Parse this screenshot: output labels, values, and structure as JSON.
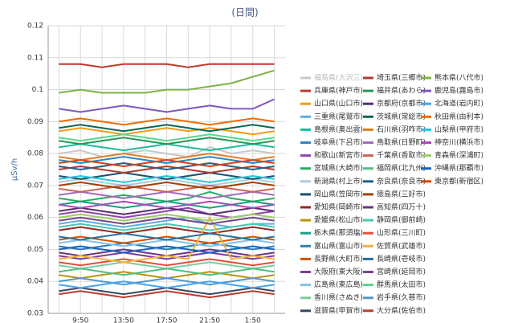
{
  "chart_data": {
    "type": "line",
    "title": "(日間)",
    "y_label": "μSv/h",
    "categories": [
      null,
      "9:50",
      null,
      "13:50",
      null,
      "17:50",
      null,
      "21:50",
      null,
      "1:50",
      null
    ],
    "ylim": [
      0.03,
      0.12
    ],
    "yticks": [
      0.03,
      0.04,
      0.05,
      0.06,
      0.07,
      0.08,
      0.09,
      0.1,
      0.11,
      0.12
    ],
    "grid": true,
    "series": [
      {
        "name": "福島県(大沢三)",
        "color": "#c8c8c8",
        "values": [
          0.08,
          0.081,
          0.079,
          0.08,
          0.081,
          0.08,
          0.079,
          0.082,
          0.08,
          0.081,
          0.08
        ]
      },
      {
        "name": "兵庫県(神戸市)",
        "color": "#c0392b",
        "values": [
          0.108,
          0.108,
          0.107,
          0.108,
          0.108,
          0.108,
          0.107,
          0.108,
          0.108,
          0.108,
          0.108
        ]
      },
      {
        "name": "山口県(山口市)",
        "color": "#f39c12",
        "values": [
          0.087,
          0.088,
          0.087,
          0.086,
          0.087,
          0.088,
          0.087,
          0.088,
          0.087,
          0.086,
          0.087
        ]
      },
      {
        "name": "三重県(尾鷲市)",
        "color": "#5dade2",
        "values": [
          0.058,
          0.059,
          0.058,
          0.057,
          0.058,
          0.059,
          0.06,
          0.058,
          0.057,
          0.058,
          0.058
        ]
      },
      {
        "name": "島根県(奥出雲)",
        "color": "#1abc9c",
        "values": [
          0.082,
          0.083,
          0.082,
          0.081,
          0.082,
          0.083,
          0.082,
          0.081,
          0.082,
          0.083,
          0.082
        ]
      },
      {
        "name": "岐阜県(下呂市)",
        "color": "#2e86c1",
        "values": [
          0.078,
          0.077,
          0.078,
          0.079,
          0.078,
          0.077,
          0.078,
          0.079,
          0.078,
          0.077,
          0.078
        ]
      },
      {
        "name": "和歌山(新宮市)",
        "color": "#8e44ad",
        "values": [
          0.061,
          0.062,
          0.061,
          0.06,
          0.061,
          0.062,
          0.063,
          0.061,
          0.06,
          0.061,
          0.062
        ]
      },
      {
        "name": "宮城県(大崎市)",
        "color": "#27ae60",
        "values": [
          0.066,
          0.065,
          0.066,
          0.067,
          0.066,
          0.065,
          0.066,
          0.068,
          0.066,
          0.065,
          0.066
        ]
      },
      {
        "name": "新潟県(村上市)",
        "color": "#a9cce3",
        "values": [
          0.071,
          0.072,
          0.071,
          0.07,
          0.071,
          0.072,
          0.071,
          0.07,
          0.071,
          0.072,
          0.071
        ]
      },
      {
        "name": "岡山県(笠岡市)",
        "color": "#1b4f72",
        "values": [
          0.073,
          0.072,
          0.073,
          0.074,
          0.073,
          0.072,
          0.073,
          0.074,
          0.073,
          0.072,
          0.073
        ]
      },
      {
        "name": "愛知県(岡崎市)",
        "color": "#922b21",
        "values": [
          0.056,
          0.057,
          0.056,
          0.055,
          0.056,
          0.057,
          0.056,
          0.055,
          0.056,
          0.057,
          0.056
        ]
      },
      {
        "name": "愛媛県(松山市)",
        "color": "#b7950b",
        "values": [
          0.042,
          0.041,
          0.042,
          0.043,
          0.042,
          0.041,
          0.042,
          0.043,
          0.042,
          0.041,
          0.042
        ]
      },
      {
        "name": "栃木県(那須塩)",
        "color": "#16a085",
        "values": [
          0.064,
          0.065,
          0.064,
          0.063,
          0.064,
          0.065,
          0.064,
          0.063,
          0.064,
          0.065,
          0.064
        ]
      },
      {
        "name": "富山県(富山市)",
        "color": "#2980b9",
        "values": [
          0.051,
          0.05,
          0.051,
          0.052,
          0.051,
          0.05,
          0.051,
          0.052,
          0.051,
          0.05,
          0.051
        ]
      },
      {
        "name": "長野県(大町市)",
        "color": "#d35400",
        "values": [
          0.053,
          0.054,
          0.053,
          0.052,
          0.053,
          0.054,
          0.053,
          0.052,
          0.053,
          0.054,
          0.053
        ]
      },
      {
        "name": "大阪府(東大阪)",
        "color": "#7d3c98",
        "values": [
          0.048,
          0.047,
          0.048,
          0.049,
          0.048,
          0.047,
          0.048,
          0.049,
          0.048,
          0.047,
          0.048
        ]
      },
      {
        "name": "広島県(東広島)",
        "color": "#85c1e9",
        "values": [
          0.052,
          0.053,
          0.052,
          0.051,
          0.052,
          0.053,
          0.052,
          0.051,
          0.052,
          0.053,
          0.052
        ]
      },
      {
        "name": "香川県(さぬき)",
        "color": "#7dcea0",
        "values": [
          0.045,
          0.044,
          0.045,
          0.046,
          0.045,
          0.044,
          0.045,
          0.046,
          0.045,
          0.044,
          0.045
        ]
      },
      {
        "name": "滋賀県(甲賀市)",
        "color": "#34495e",
        "values": [
          0.037,
          0.038,
          0.037,
          0.036,
          0.037,
          0.038,
          0.037,
          0.036,
          0.037,
          0.038,
          0.037
        ]
      },
      {
        "name": "埼玉県(三郷市)",
        "color": "#b03a2e",
        "values": [
          0.075,
          0.076,
          0.075,
          0.074,
          0.075,
          0.076,
          0.075,
          0.074,
          0.075,
          0.076,
          0.075
        ]
      },
      {
        "name": "福井県(あわら)",
        "color": "#229954",
        "values": [
          0.084,
          0.083,
          0.084,
          0.085,
          0.084,
          0.083,
          0.084,
          0.085,
          0.084,
          0.083,
          0.084
        ]
      },
      {
        "name": "京都府(京都市)",
        "color": "#5b2c6f",
        "values": [
          0.062,
          0.063,
          0.062,
          0.061,
          0.062,
          0.063,
          0.062,
          0.061,
          0.062,
          0.063,
          0.062
        ]
      },
      {
        "name": "茨城県(常総市)",
        "color": "#0e6655",
        "values": [
          0.088,
          0.089,
          0.088,
          0.087,
          0.088,
          0.089,
          0.088,
          0.087,
          0.088,
          0.089,
          0.088
        ]
      },
      {
        "name": "石川県(羽咋市)",
        "color": "#e67e22",
        "values": [
          0.079,
          0.078,
          0.079,
          0.08,
          0.079,
          0.078,
          0.079,
          0.08,
          0.079,
          0.078,
          0.079
        ]
      },
      {
        "name": "鳥取県(日野町)",
        "color": "#a569bd",
        "values": [
          0.067,
          0.068,
          0.067,
          0.066,
          0.067,
          0.068,
          0.067,
          0.066,
          0.067,
          0.068,
          0.067
        ]
      },
      {
        "name": "千葉県(香取市)",
        "color": "#cd6155",
        "values": [
          0.069,
          0.068,
          0.069,
          0.07,
          0.069,
          0.068,
          0.069,
          0.07,
          0.069,
          0.068,
          0.069
        ]
      },
      {
        "name": "福岡県(北九州)",
        "color": "#52be80",
        "values": [
          0.043,
          0.044,
          0.043,
          0.042,
          0.043,
          0.044,
          0.043,
          0.042,
          0.043,
          0.044,
          0.043
        ]
      },
      {
        "name": "奈良県(奈良市)",
        "color": "#1f618d",
        "values": [
          0.076,
          0.075,
          0.076,
          0.077,
          0.076,
          0.075,
          0.076,
          0.077,
          0.076,
          0.075,
          0.076
        ]
      },
      {
        "name": "徳島県(三好市)",
        "color": "#a04000",
        "values": [
          0.07,
          0.071,
          0.07,
          0.069,
          0.07,
          0.071,
          0.07,
          0.069,
          0.07,
          0.071,
          0.07
        ]
      },
      {
        "name": "高知県(四万十)",
        "color": "#6c3483",
        "values": [
          0.049,
          0.048,
          0.049,
          0.05,
          0.049,
          0.048,
          0.049,
          0.05,
          0.049,
          0.048,
          0.049
        ]
      },
      {
        "name": "静岡県(御前崎)",
        "color": "#48c9b0",
        "values": [
          0.057,
          0.058,
          0.057,
          0.056,
          0.057,
          0.058,
          0.057,
          0.056,
          0.057,
          0.058,
          0.057
        ]
      },
      {
        "name": "山形県(三川町)",
        "color": "#e74c3c",
        "values": [
          0.046,
          0.045,
          0.046,
          0.047,
          0.046,
          0.045,
          0.046,
          0.047,
          0.046,
          0.045,
          0.046
        ]
      },
      {
        "name": "佐賀県(武雄市)",
        "color": "#f5b041",
        "values": [
          0.047,
          0.048,
          0.047,
          0.046,
          0.047,
          0.048,
          0.047,
          0.06,
          0.047,
          0.048,
          0.047
        ]
      },
      {
        "name": "長崎県(壱岐市)",
        "color": "#2471a3",
        "values": [
          0.054,
          0.053,
          0.054,
          0.055,
          0.054,
          0.053,
          0.054,
          0.055,
          0.054,
          0.053,
          0.054
        ]
      },
      {
        "name": "宮崎県(延岡市)",
        "color": "#76448a",
        "values": [
          0.059,
          0.06,
          0.059,
          0.058,
          0.059,
          0.06,
          0.059,
          0.058,
          0.059,
          0.06,
          0.059
        ]
      },
      {
        "name": "群馬県(太田市)",
        "color": "#58d68d",
        "values": [
          0.085,
          0.084,
          0.085,
          0.086,
          0.085,
          0.084,
          0.085,
          0.086,
          0.085,
          0.084,
          0.085
        ]
      },
      {
        "name": "岩手県(久慈市)",
        "color": "#5499c7",
        "values": [
          0.04,
          0.041,
          0.04,
          0.039,
          0.04,
          0.041,
          0.04,
          0.039,
          0.04,
          0.041,
          0.04
        ]
      },
      {
        "name": "大分県(佐伯市)",
        "color": "#c0392b",
        "values": [
          0.036,
          0.037,
          0.036,
          0.035,
          0.036,
          0.037,
          0.036,
          0.035,
          0.036,
          0.037,
          0.036
        ]
      },
      {
        "name": "熊本県(八代市)",
        "color": "#7cb342",
        "values": [
          0.099,
          0.1,
          0.099,
          0.099,
          0.099,
          0.1,
          0.1,
          0.101,
          0.102,
          0.104,
          0.106
        ]
      },
      {
        "name": "鹿児島(霧島市)",
        "color": "#7e57c2",
        "values": [
          0.094,
          0.093,
          0.094,
          0.095,
          0.094,
          0.093,
          0.094,
          0.095,
          0.094,
          0.094,
          0.097
        ]
      },
      {
        "name": "北海道(岩内町)",
        "color": "#42a5f5",
        "values": [
          0.039,
          0.038,
          0.039,
          0.04,
          0.039,
          0.038,
          0.039,
          0.04,
          0.039,
          0.038,
          0.039
        ]
      },
      {
        "name": "秋田県(由利本)",
        "color": "#ef6c00",
        "values": [
          0.09,
          0.091,
          0.09,
          0.089,
          0.09,
          0.091,
          0.09,
          0.089,
          0.09,
          0.091,
          0.09
        ]
      },
      {
        "name": "山梨県(甲府市)",
        "color": "#26c6da",
        "values": [
          0.072,
          0.073,
          0.072,
          0.071,
          0.072,
          0.073,
          0.072,
          0.071,
          0.072,
          0.073,
          0.072
        ]
      },
      {
        "name": "神奈川(横浜市)",
        "color": "#ab47bc",
        "values": [
          0.064,
          0.063,
          0.064,
          0.065,
          0.064,
          0.063,
          0.064,
          0.065,
          0.064,
          0.063,
          0.064
        ]
      },
      {
        "name": "青森県(深浦町)",
        "color": "#9ccc65",
        "values": [
          0.06,
          0.061,
          0.06,
          0.059,
          0.06,
          0.061,
          0.06,
          0.059,
          0.06,
          0.061,
          0.06
        ]
      },
      {
        "name": "沖縄県(那覇市)",
        "color": "#1565c0",
        "values": [
          0.05,
          0.051,
          0.05,
          0.049,
          0.05,
          0.051,
          0.05,
          0.049,
          0.05,
          0.051,
          0.05
        ]
      },
      {
        "name": "東京都(新宿区)",
        "color": "#d84315",
        "values": [
          0.077,
          0.078,
          0.077,
          0.076,
          0.077,
          0.078,
          0.077,
          0.076,
          0.077,
          0.078,
          0.077
        ]
      }
    ]
  }
}
